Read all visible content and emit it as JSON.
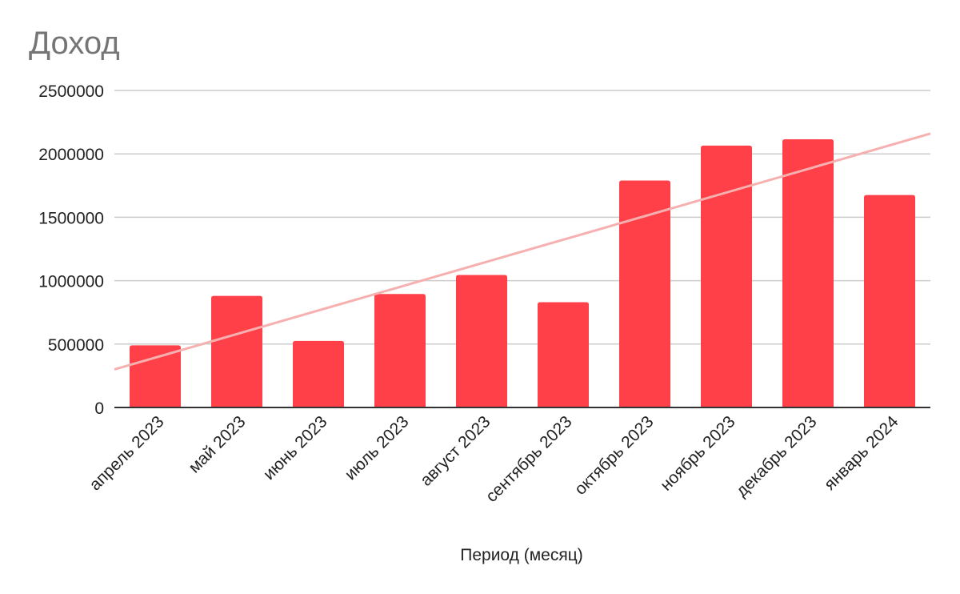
{
  "chart_data": {
    "type": "bar",
    "title": "Доход",
    "xlabel": "Период (месяц)",
    "ylabel": "",
    "categories": [
      "апрель 2023",
      "май 2023",
      "июнь 2023",
      "июль 2023",
      "август 2023",
      "сентябрь 2023",
      "октябрь 2023",
      "ноябрь 2023",
      "декабрь 2023",
      "январь 2024"
    ],
    "series": [
      {
        "values": [
          490000,
          880000,
          525000,
          895000,
          1045000,
          830000,
          1790000,
          2065000,
          2115000,
          1675000
        ],
        "color": "#ff4048"
      }
    ],
    "trendline": {
      "type": "linear",
      "color": "#f7b0b0",
      "start_value": 300000,
      "end_value": 2160000
    },
    "ylim": [
      0,
      2500000
    ],
    "yticks": [
      "0",
      "500000",
      "1000000",
      "1500000",
      "2000000",
      "2500000"
    ],
    "grid": true,
    "legend": "none"
  }
}
